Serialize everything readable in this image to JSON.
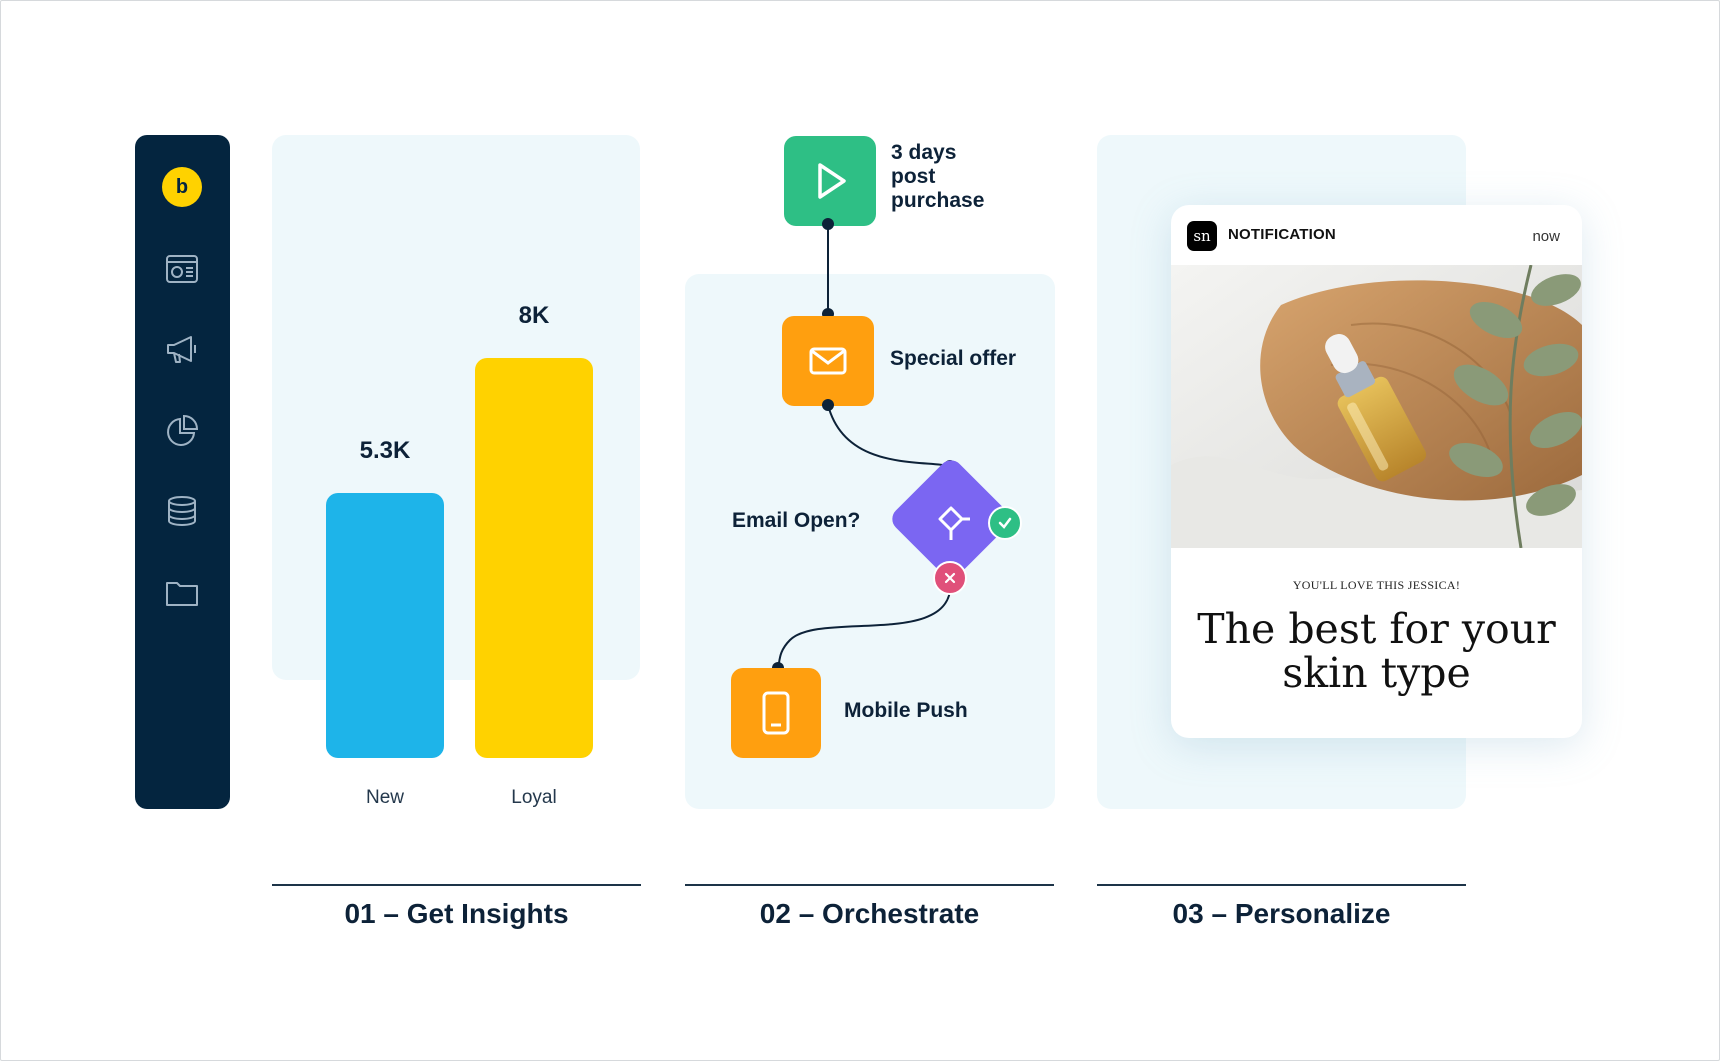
{
  "brand": {
    "logo_letter": "b",
    "logo_color": "#ffd200",
    "sidebar_color": "#04253f"
  },
  "sidebar": {
    "icons": [
      "dashboard-icon",
      "megaphone-icon",
      "pie-chart-icon",
      "database-icon",
      "folder-icon"
    ]
  },
  "insights": {
    "caption": "01 – Get Insights",
    "chart_data": {
      "type": "bar",
      "categories": [
        "New",
        "Loyal"
      ],
      "values": [
        5.3,
        8
      ],
      "value_labels": [
        "5.3K",
        "8K"
      ],
      "colors": [
        "#1eb4e9",
        "#ffd200"
      ],
      "ylim": [
        0,
        9
      ],
      "title": "",
      "xlabel": "",
      "ylabel": ""
    }
  },
  "orchestrate": {
    "caption": "02 – Orchestrate",
    "trigger": {
      "label": "3 days\npost\npurchase",
      "color": "#2ebf85"
    },
    "email": {
      "label": "Special offer",
      "color": "#ff9f0f"
    },
    "condition": {
      "label": "Email Open?",
      "color": "#7b66f2",
      "yes_color": "#2ebf85",
      "no_color": "#e0507a"
    },
    "push": {
      "label": "Mobile Push",
      "color": "#ff9f0f"
    }
  },
  "personalize": {
    "caption": "03 – Personalize",
    "notification": {
      "badge": "sn",
      "title": "NOTIFICATION",
      "time": "now",
      "eyebrow": "YOU'LL LOVE THIS JESSICA!",
      "headline": "The best for your skin type"
    }
  }
}
